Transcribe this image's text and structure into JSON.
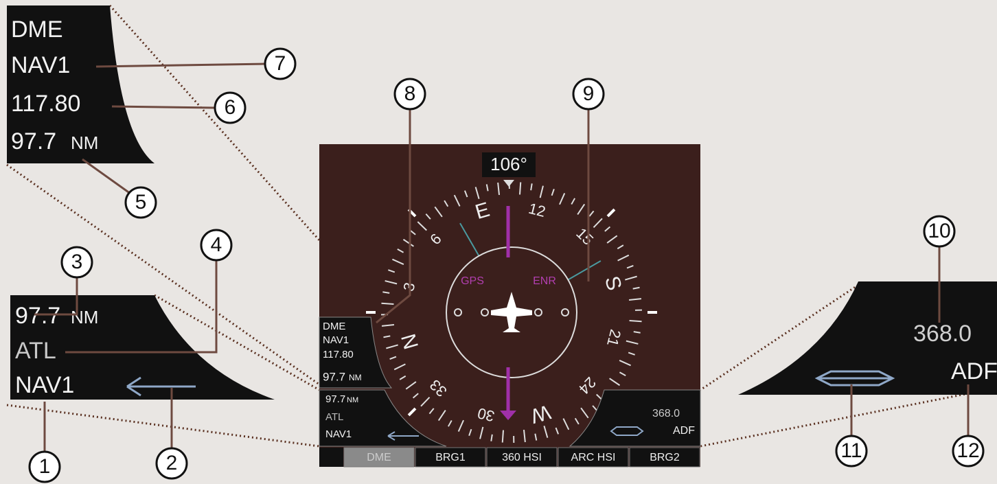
{
  "dme_inset": {
    "type": "DME",
    "source": "NAV1",
    "frequency": "117.80",
    "distance": "97.7",
    "unit": "NM"
  },
  "nav_inset": {
    "distance": "97.7",
    "unit": "NM",
    "ident": "ATL",
    "source": "NAV1"
  },
  "adf_inset": {
    "frequency": "368.0",
    "source": "ADF"
  },
  "callouts": [
    "1",
    "2",
    "3",
    "4",
    "5",
    "6",
    "7",
    "8",
    "9",
    "10",
    "11",
    "12"
  ],
  "display": {
    "heading": "106°",
    "compass": [
      "N",
      "3",
      "6",
      "E",
      "12",
      "15",
      "S",
      "21",
      "24",
      "W",
      "30",
      "33"
    ],
    "gps": "GPS",
    "enr": "ENR",
    "dme_box": {
      "type": "DME",
      "source": "NAV1",
      "frequency": "117.80",
      "distance": "97.7",
      "unit": "NM"
    },
    "nav_box": {
      "distance": "97.7",
      "unit": "NM",
      "ident": "ATL",
      "source": "NAV1"
    },
    "adf_box": {
      "frequency": "368.0",
      "source": "ADF"
    },
    "softkeys": [
      "DME",
      "BRG1",
      "360 HSI",
      "ARC HSI",
      "BRG2"
    ]
  }
}
